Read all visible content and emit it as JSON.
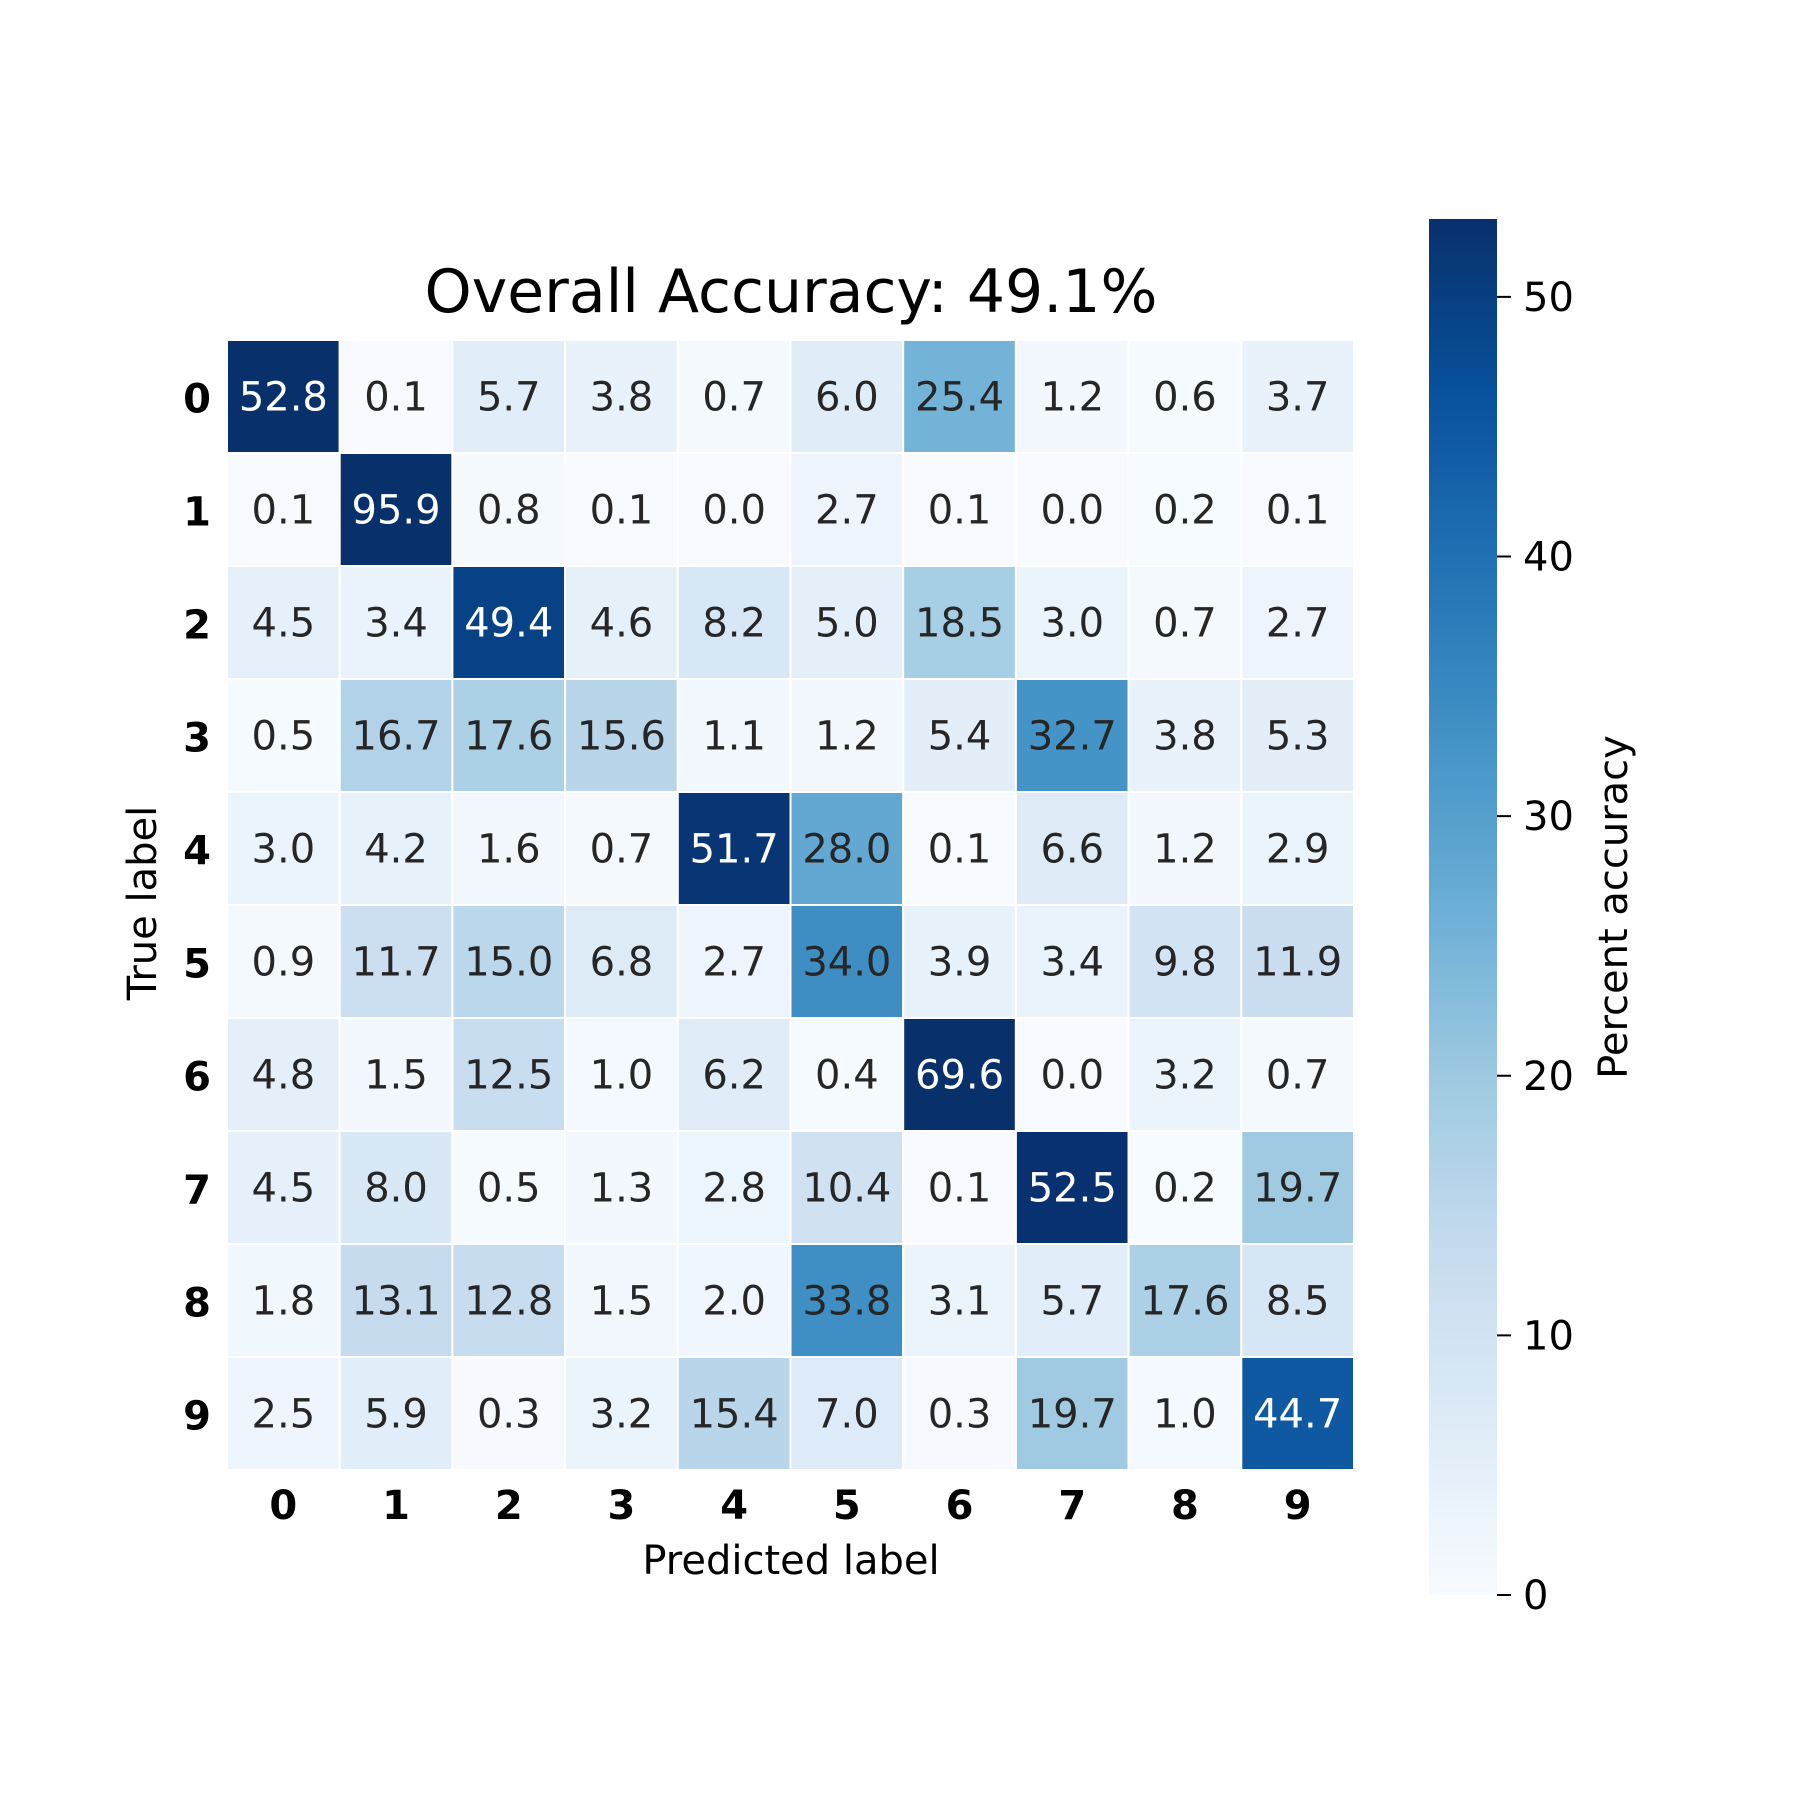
{
  "chart_data": {
    "type": "heatmap",
    "title": "Overall Accuracy: 49.1%",
    "xlabel": "Predicted label",
    "ylabel": "True label",
    "x_categories": [
      "0",
      "1",
      "2",
      "3",
      "4",
      "5",
      "6",
      "7",
      "8",
      "9"
    ],
    "y_categories": [
      "0",
      "1",
      "2",
      "3",
      "4",
      "5",
      "6",
      "7",
      "8",
      "9"
    ],
    "values": [
      [
        52.8,
        0.1,
        5.7,
        3.8,
        0.7,
        6.0,
        25.4,
        1.2,
        0.6,
        3.7
      ],
      [
        0.1,
        95.9,
        0.8,
        0.1,
        0.0,
        2.7,
        0.1,
        0.0,
        0.2,
        0.1
      ],
      [
        4.5,
        3.4,
        49.4,
        4.6,
        8.2,
        5.0,
        18.5,
        3.0,
        0.7,
        2.7
      ],
      [
        0.5,
        16.7,
        17.6,
        15.6,
        1.1,
        1.2,
        5.4,
        32.7,
        3.8,
        5.3
      ],
      [
        3.0,
        4.2,
        1.6,
        0.7,
        51.7,
        28.0,
        0.1,
        6.6,
        1.2,
        2.9
      ],
      [
        0.9,
        11.7,
        15.0,
        6.8,
        2.7,
        34.0,
        3.9,
        3.4,
        9.8,
        11.9
      ],
      [
        4.8,
        1.5,
        12.5,
        1.0,
        6.2,
        0.4,
        69.6,
        0.0,
        3.2,
        0.7
      ],
      [
        4.5,
        8.0,
        0.5,
        1.3,
        2.8,
        10.4,
        0.1,
        52.5,
        0.2,
        19.7
      ],
      [
        1.8,
        13.1,
        12.8,
        1.5,
        2.0,
        33.8,
        3.1,
        5.7,
        17.6,
        8.5
      ],
      [
        2.5,
        5.9,
        0.3,
        3.2,
        15.4,
        7.0,
        0.3,
        19.7,
        1.0,
        44.7
      ]
    ],
    "value_format": "0.1f",
    "colormap": "Blues",
    "colorbar": {
      "label": "Percent accuracy",
      "range": [
        0,
        53
      ],
      "ticks": [
        0,
        10,
        20,
        30,
        40,
        50
      ]
    },
    "grid": true
  }
}
